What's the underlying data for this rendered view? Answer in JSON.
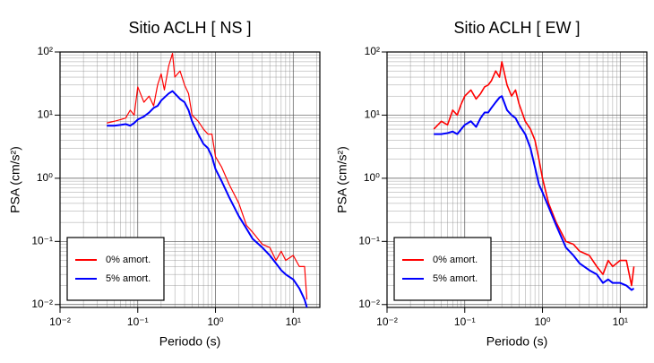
{
  "chart_data": [
    {
      "type": "line",
      "title": "Sitio ACLH [ NS ]",
      "x_label": "Periodo (s)",
      "y_label": "PSA (cm/s²)",
      "x_scale": "log",
      "y_scale": "log",
      "grid": true,
      "legend": "lower left",
      "xlim": [
        0.01,
        22
      ],
      "ylim": [
        0.009,
        100
      ],
      "xticks": [
        {
          "value": 0.01,
          "label": "10⁻²"
        },
        {
          "value": 0.1,
          "label": "10⁻¹"
        },
        {
          "value": 1,
          "label": "10⁰"
        },
        {
          "value": 10,
          "label": "10¹"
        }
      ],
      "yticks": [
        {
          "value": 0.01,
          "label": "10⁻²"
        },
        {
          "value": 0.1,
          "label": "10⁻¹"
        },
        {
          "value": 1,
          "label": "10⁰"
        },
        {
          "value": 10,
          "label": "10¹"
        },
        {
          "value": 100,
          "label": "10²"
        }
      ],
      "x": [
        0.04,
        0.05,
        0.06,
        0.07,
        0.08,
        0.09,
        0.1,
        0.12,
        0.14,
        0.16,
        0.18,
        0.2,
        0.22,
        0.25,
        0.28,
        0.3,
        0.35,
        0.4,
        0.45,
        0.5,
        0.6,
        0.7,
        0.8,
        0.9,
        1.0,
        1.2,
        1.5,
        2,
        2.5,
        3,
        4,
        5,
        6,
        7,
        8,
        10,
        12,
        14,
        15
      ],
      "series": [
        {
          "name": "0% amort.",
          "color": "#ff0000",
          "width": 1.2,
          "values": [
            7.5,
            8,
            8.5,
            9,
            12,
            10,
            28,
            16,
            20,
            14,
            30,
            45,
            25,
            60,
            95,
            40,
            50,
            30,
            22,
            10,
            8,
            6,
            5,
            5,
            2.2,
            1.5,
            0.8,
            0.4,
            0.18,
            0.14,
            0.09,
            0.08,
            0.05,
            0.07,
            0.05,
            0.06,
            0.04,
            0.04,
            0.012
          ]
        },
        {
          "name": "5% amort.",
          "color": "#0000ff",
          "width": 2,
          "values": [
            6.8,
            6.8,
            7,
            7.2,
            6.8,
            7.5,
            8.5,
            9.5,
            11,
            13,
            14,
            17,
            19,
            22,
            24,
            22,
            18,
            16,
            12,
            8,
            5,
            3.5,
            3.0,
            2.2,
            1.4,
            0.9,
            0.5,
            0.25,
            0.16,
            0.11,
            0.08,
            0.06,
            0.045,
            0.035,
            0.03,
            0.025,
            0.018,
            0.012,
            0.009
          ]
        }
      ]
    },
    {
      "type": "line",
      "title": "Sitio ACLH [ EW ]",
      "x_label": "Periodo (s)",
      "y_label": "PSA (cm/s²)",
      "x_scale": "log",
      "y_scale": "log",
      "grid": true,
      "legend": "lower left",
      "xlim": [
        0.01,
        22
      ],
      "ylim": [
        0.009,
        100
      ],
      "xticks": [
        {
          "value": 0.01,
          "label": "10⁻²"
        },
        {
          "value": 0.1,
          "label": "10⁻¹"
        },
        {
          "value": 1,
          "label": "10⁰"
        },
        {
          "value": 10,
          "label": "10¹"
        }
      ],
      "yticks": [
        {
          "value": 0.01,
          "label": "10⁻²"
        },
        {
          "value": 0.1,
          "label": "10⁻¹"
        },
        {
          "value": 1,
          "label": "10⁰"
        },
        {
          "value": 10,
          "label": "10¹"
        },
        {
          "value": 100,
          "label": "10²"
        }
      ],
      "x": [
        0.04,
        0.05,
        0.06,
        0.07,
        0.08,
        0.09,
        0.1,
        0.12,
        0.14,
        0.16,
        0.18,
        0.2,
        0.22,
        0.25,
        0.28,
        0.3,
        0.35,
        0.4,
        0.45,
        0.5,
        0.6,
        0.7,
        0.8,
        0.9,
        1.0,
        1.2,
        1.5,
        2,
        2.5,
        3,
        4,
        5,
        6,
        7,
        8,
        10,
        12,
        14,
        15
      ],
      "series": [
        {
          "name": "0% amort.",
          "color": "#ff0000",
          "width": 1.6,
          "values": [
            6,
            8,
            7,
            12,
            10,
            15,
            20,
            25,
            18,
            22,
            28,
            30,
            35,
            50,
            40,
            70,
            30,
            20,
            25,
            15,
            8,
            6,
            4,
            2,
            1.0,
            0.4,
            0.2,
            0.1,
            0.09,
            0.07,
            0.06,
            0.04,
            0.03,
            0.05,
            0.04,
            0.05,
            0.05,
            0.02,
            0.04
          ]
        },
        {
          "name": "5% amort.",
          "color": "#0000ff",
          "width": 2,
          "values": [
            5,
            5,
            5.2,
            5.5,
            5,
            6,
            7,
            8,
            6.5,
            9,
            11,
            11,
            13,
            16,
            19,
            20,
            12,
            10,
            9,
            7,
            5,
            3,
            1.5,
            0.8,
            0.6,
            0.35,
            0.18,
            0.08,
            0.06,
            0.045,
            0.035,
            0.03,
            0.022,
            0.025,
            0.022,
            0.022,
            0.02,
            0.017,
            0.018
          ]
        }
      ]
    }
  ]
}
